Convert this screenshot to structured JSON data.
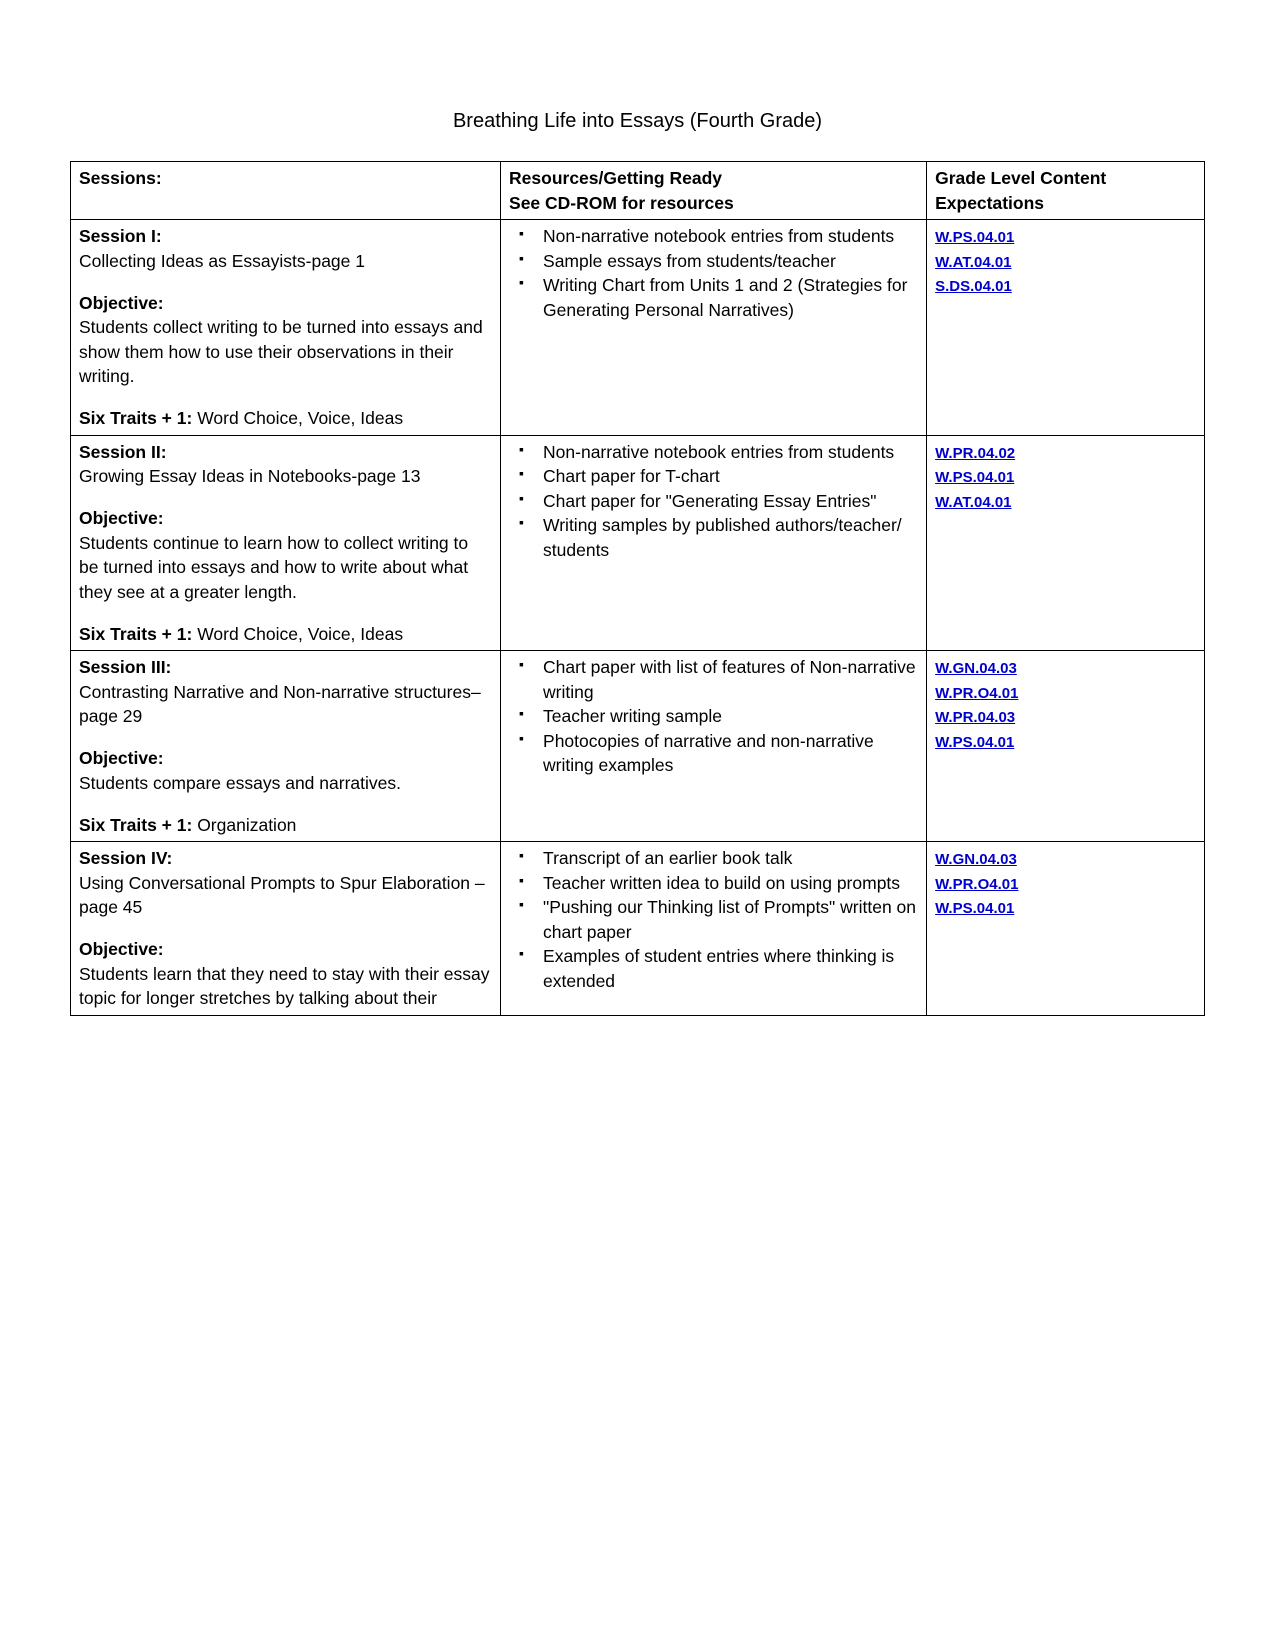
{
  "title": "Breathing Life into Essays (Fourth Grade)",
  "headers": {
    "sessions": "Sessions:",
    "resources_line1": "Resources/Getting Ready",
    "resources_line2": "See CD-ROM for resources",
    "expectations_line1": "Grade Level Content",
    "expectations_line2": "Expectations"
  },
  "labels": {
    "objective": "Objective:",
    "six_traits": "Six Traits + 1: "
  },
  "rows": [
    {
      "session_title": "Session I:",
      "session_subtitle": "Collecting Ideas as Essayists-page 1",
      "objective": "Students collect writing to be turned into essays and show them how to use their observations in their writing.",
      "six_traits": "Word Choice, Voice, Ideas",
      "resources": [
        "Non-narrative notebook entries from students",
        "Sample essays from students/teacher",
        "Writing Chart from Units 1 and 2 (Strategies for Generating Personal Narratives)"
      ],
      "standards": [
        "W.PS.04.01",
        "W.AT.04.01",
        "S.DS.04.01"
      ]
    },
    {
      "session_title": "Session II:",
      "session_subtitle": "Growing Essay Ideas in Notebooks-page 13",
      "objective": "Students continue to learn how to collect writing to be turned into essays and how to write about what they see at a greater length.",
      "six_traits": "Word Choice, Voice, Ideas",
      "resources": [
        "Non-narrative notebook entries from students",
        "Chart paper for T-chart",
        "Chart paper for \"Generating Essay Entries\"",
        "Writing samples by published authors/teacher/ students"
      ],
      "standards": [
        "W.PR.04.02",
        "W.PS.04.01",
        "W.AT.04.01"
      ]
    },
    {
      "session_title": "Session III:",
      "session_subtitle": "Contrasting Narrative and Non-narrative structures– page 29",
      "objective": "Students compare essays and narratives.",
      "six_traits": "Organization",
      "resources": [
        "Chart paper with list of features of Non-narrative writing",
        "Teacher writing sample",
        "Photocopies of narrative and non-narrative writing examples"
      ],
      "standards": [
        "W.GN.04.03",
        "W.PR.O4.01",
        "W.PR.04.03",
        "W.PS.04.01"
      ]
    },
    {
      "session_title": "Session IV:",
      "session_subtitle": "Using Conversational Prompts to Spur Elaboration – page 45",
      "objective": "Students learn that they need to stay with their essay topic for longer stretches by talking about their",
      "six_traits": "",
      "resources": [
        "Transcript of an earlier book talk",
        "Teacher written idea to build on using prompts",
        "\"Pushing our Thinking list of Prompts\" written on chart paper",
        "Examples of student entries where thinking is extended"
      ],
      "standards": [
        "W.GN.04.03",
        "W.PR.O4.01",
        "W.PS.04.01"
      ]
    }
  ]
}
